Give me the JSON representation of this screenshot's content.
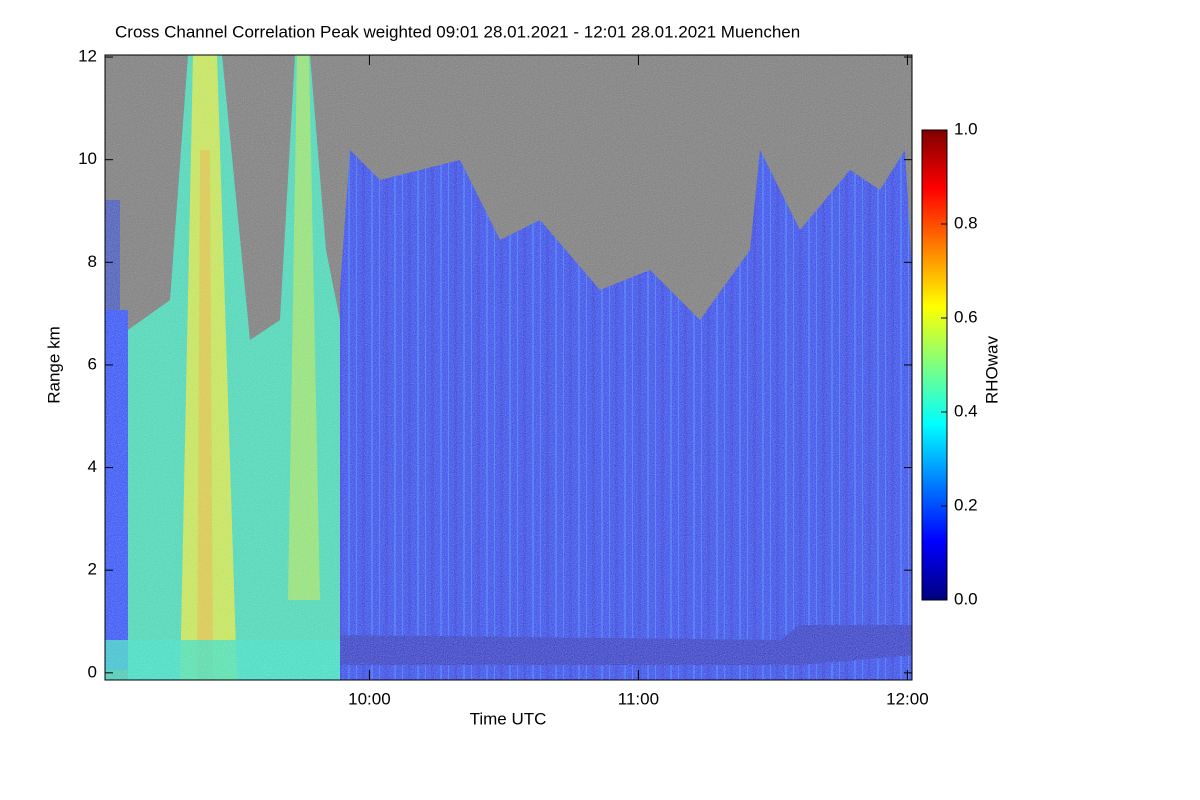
{
  "chart_data": {
    "type": "heatmap",
    "title": "Cross Channel Correlation Peak weighted   09:01 28.01.2021 - 12:01 28.01.2021 Muenchen",
    "x_label": "Time UTC",
    "y_label": "Range km",
    "colorbar_label": "RHOwav",
    "xlim": [
      9.017,
      12.017
    ],
    "xticks": [
      {
        "value": 10,
        "label": "10:00"
      },
      {
        "value": 11,
        "label": "11:00"
      },
      {
        "value": 12,
        "label": "12:00"
      }
    ],
    "ylim": [
      -0.14,
      12.04
    ],
    "yticks": [
      0,
      2,
      4,
      6,
      8,
      10,
      12
    ],
    "clim": [
      0,
      1
    ],
    "cticks": [
      {
        "value": 0,
        "label": "0.0"
      },
      {
        "value": 0.2,
        "label": "0.2"
      },
      {
        "value": 0.4,
        "label": "0.4"
      },
      {
        "value": 0.6,
        "label": "0.6"
      },
      {
        "value": 0.8,
        "label": "0.8"
      },
      {
        "value": 1,
        "label": "1.0"
      }
    ],
    "colorscale": [
      "#00007f",
      "#0000ff",
      "#007fff",
      "#00ffff",
      "#7fff7f",
      "#ffff00",
      "#ff7f00",
      "#ff0000",
      "#7f0000"
    ]
  }
}
